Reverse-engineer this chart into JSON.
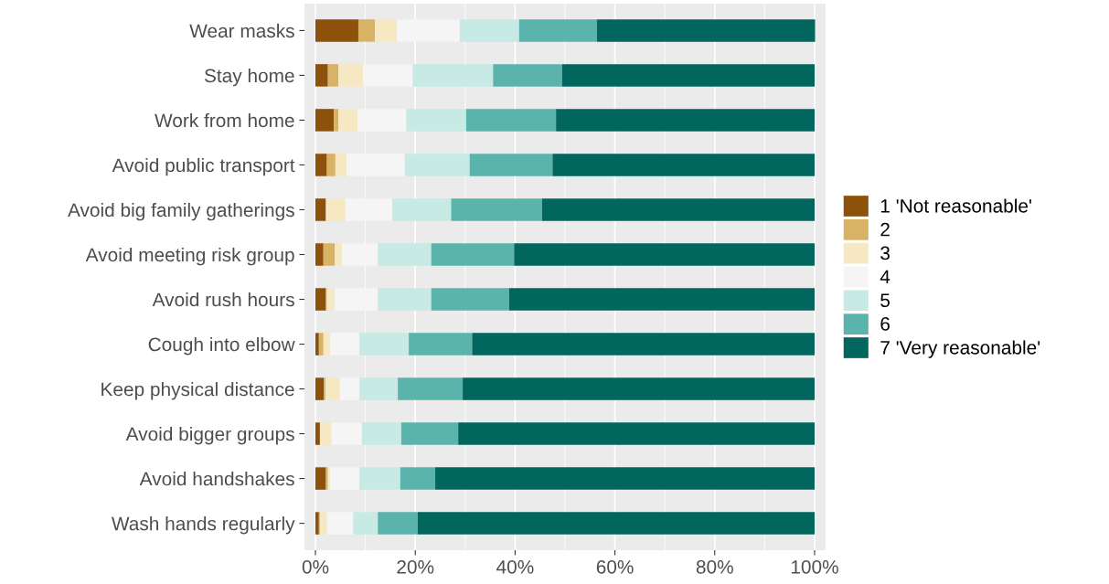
{
  "chart_data": {
    "type": "bar",
    "orientation": "horizontal",
    "stacked": true,
    "categories": [
      "Wear masks",
      "Stay home",
      "Work from home",
      "Avoid public transport",
      "Avoid big family gatherings",
      "Avoid meeting risk group",
      "Avoid rush hours",
      "Cough into elbow",
      "Keep physical distance",
      "Avoid bigger groups",
      "Avoid handshakes",
      "Wash hands regularly"
    ],
    "series": [
      {
        "name": "1 'Not reasonable'",
        "color": "#8c510a",
        "values": [
          8.6,
          2.5,
          3.7,
          2.3,
          2.1,
          1.6,
          2.1,
          0.7,
          1.7,
          0.9,
          2.1,
          0.7
        ]
      },
      {
        "name": "2",
        "color": "#d8b365",
        "values": [
          3.3,
          2.1,
          0.9,
          1.7,
          0,
          2.3,
          0.2,
          0.9,
          0.3,
          0,
          0.4,
          0.2
        ]
      },
      {
        "name": "3",
        "color": "#f6e8c3",
        "values": [
          4.4,
          4.9,
          3.8,
          2.2,
          3.9,
          1.4,
          1.6,
          1.3,
          2.9,
          2.3,
          0.4,
          1.4
        ]
      },
      {
        "name": "4",
        "color": "#f5f5f5",
        "values": [
          12.6,
          10.0,
          9.8,
          11.7,
          9.4,
          7.2,
          8.6,
          5.9,
          3.9,
          6.1,
          5.9,
          5.3
        ]
      },
      {
        "name": "5",
        "color": "#c7eae5",
        "values": [
          11.9,
          16.1,
          12.0,
          13.0,
          11.8,
          10.7,
          10.7,
          9.9,
          7.7,
          7.9,
          8.2,
          4.9
        ]
      },
      {
        "name": "6",
        "color": "#5ab4ac",
        "values": [
          15.6,
          13.8,
          18.0,
          16.6,
          18.2,
          16.6,
          15.6,
          12.7,
          13.0,
          11.4,
          7.0,
          8.0
        ]
      },
      {
        "name": "7 'Very reasonable'",
        "color": "#01665e",
        "values": [
          43.7,
          50.6,
          51.8,
          52.5,
          54.6,
          60.2,
          61.2,
          68.6,
          70.5,
          71.4,
          76.0,
          79.5
        ]
      }
    ],
    "xlim": [
      -2.2,
      102.2
    ],
    "xticks": [
      {
        "value": 0,
        "label": "0%"
      },
      {
        "value": 20,
        "label": "20%"
      },
      {
        "value": 40,
        "label": "40%"
      },
      {
        "value": 60,
        "label": "60%"
      },
      {
        "value": 80,
        "label": "80%"
      },
      {
        "value": 100,
        "label": "100%"
      }
    ],
    "grid": "x",
    "legend": "right"
  }
}
